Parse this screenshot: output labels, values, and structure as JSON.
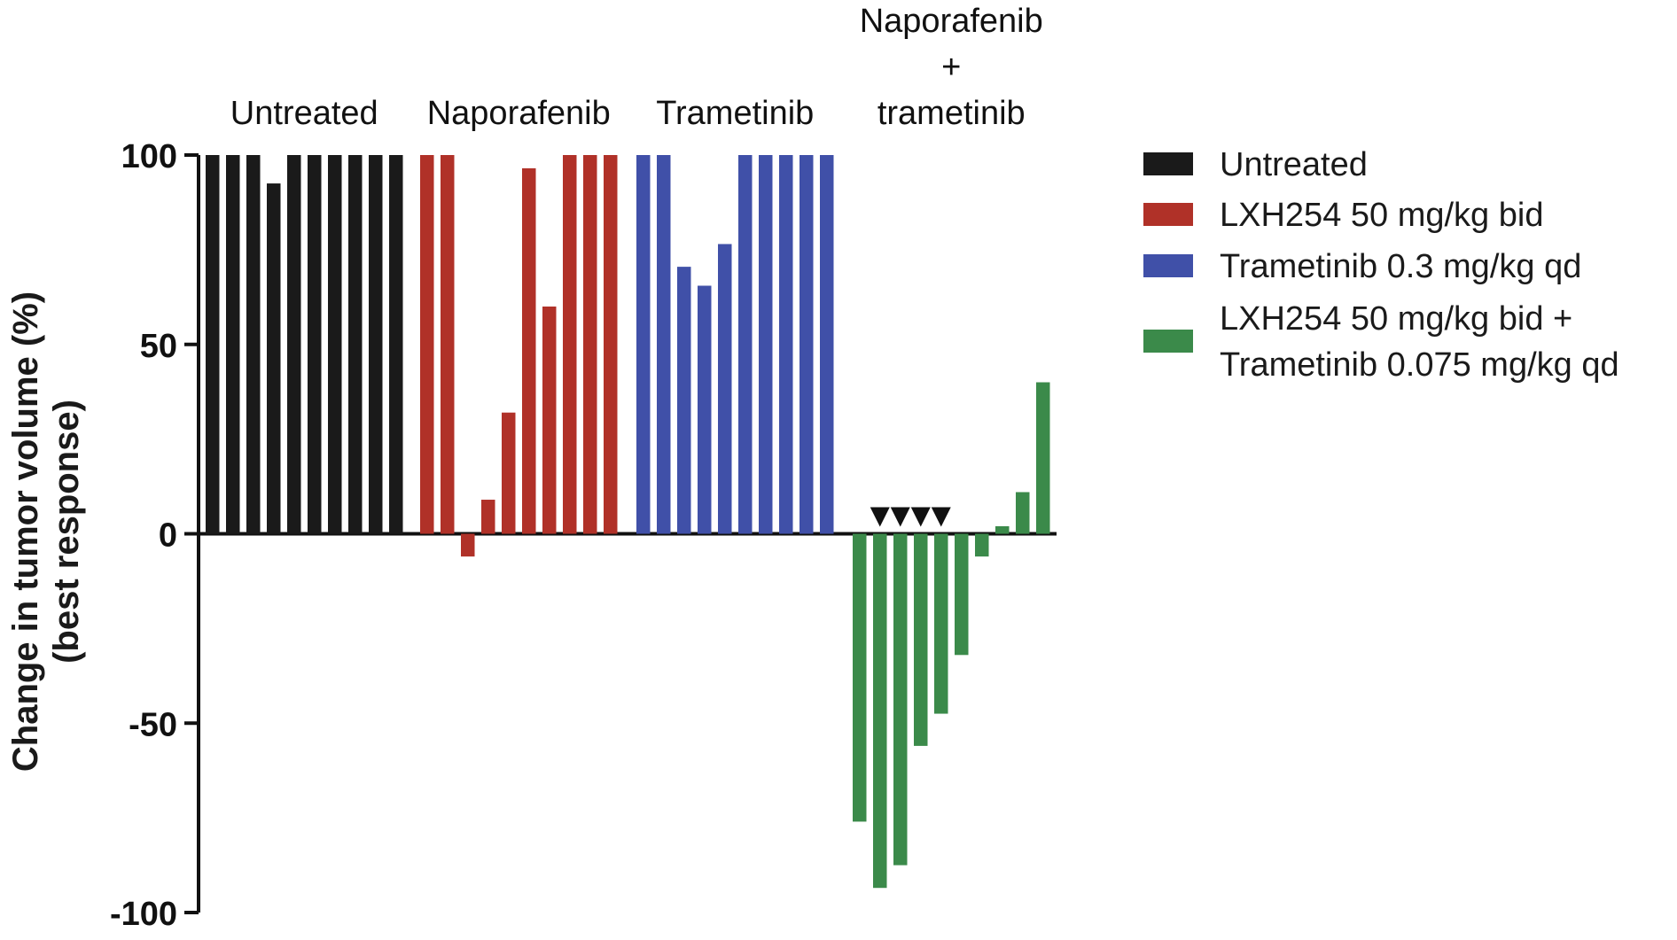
{
  "chart_data": {
    "type": "bar",
    "title": "",
    "xlabel": "",
    "ylabel": "Change in tumor volume (%)",
    "ylabel_line2": "(best response)",
    "ylim": [
      -100,
      100
    ],
    "yticks": [
      100,
      50,
      0,
      -50,
      -100
    ],
    "grid": false,
    "legend_position": "right",
    "group_labels": [
      {
        "lines": [
          "Untreated"
        ]
      },
      {
        "lines": [
          "Naporafenib"
        ]
      },
      {
        "lines": [
          "Trametinib"
        ]
      },
      {
        "lines": [
          "Naporafenib",
          "+",
          "trametinib"
        ]
      }
    ],
    "series": [
      {
        "name": "Untreated",
        "color": "#1a1a1a",
        "values": [
          100,
          100,
          100,
          92.5,
          100,
          100,
          100,
          100,
          100,
          100
        ]
      },
      {
        "name": "LXH254 50 mg/kg bid",
        "color": "#b03128",
        "values": [
          100,
          100,
          -6,
          9,
          32,
          96.5,
          60,
          100,
          100,
          100
        ]
      },
      {
        "name": "Trametinib 0.3 mg/kg qd",
        "color": "#4050a8",
        "values": [
          100,
          100,
          70.5,
          65.5,
          76.5,
          100,
          100,
          100,
          100,
          100
        ]
      },
      {
        "name": "LXH254 50 mg/kg bid + Trametinib 0.075 mg/kg qd",
        "legend_lines": [
          "LXH254 50 mg/kg bid +",
          "Trametinib 0.075 mg/kg qd"
        ],
        "color": "#3b8a4a",
        "values": [
          -76,
          -93.5,
          -87.5,
          -56,
          -47.5,
          -32,
          -6,
          2,
          11,
          40
        ],
        "marker_symbol": "▼",
        "marked_points": [
          1,
          2,
          3,
          4
        ]
      }
    ]
  }
}
